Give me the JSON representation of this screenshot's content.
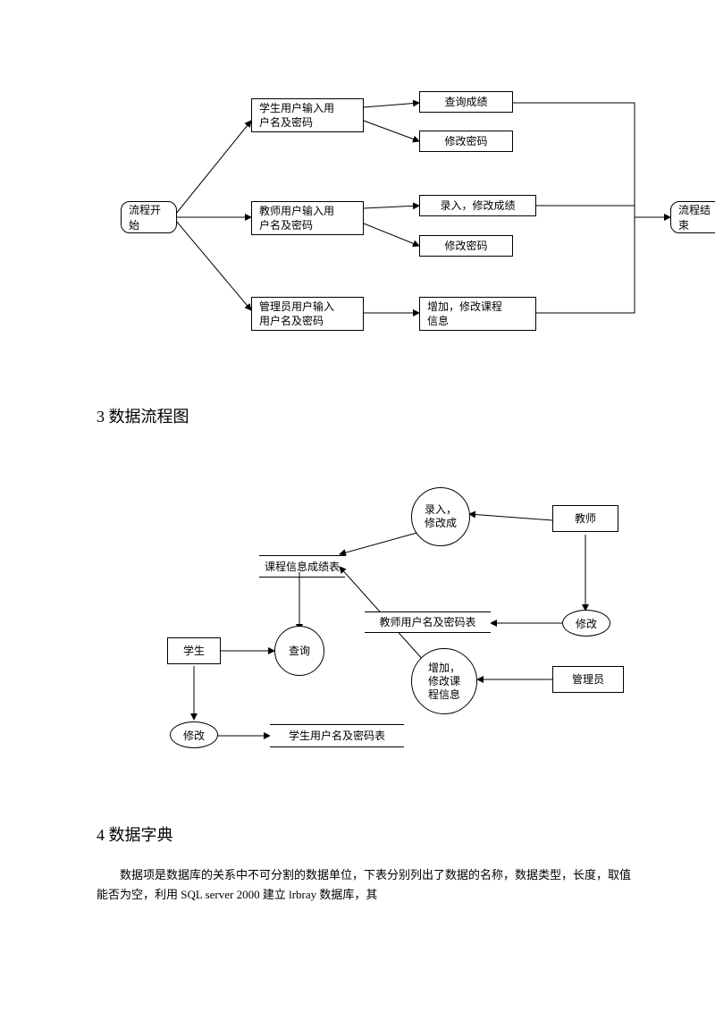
{
  "flowchart1": {
    "nodes": {
      "start": {
        "label": "流程开始"
      },
      "student": {
        "label": "学生用户输入用\n户名及密码"
      },
      "teacher": {
        "label": "教师用户输入用\n户名及密码"
      },
      "admin": {
        "label": "管理员用户输入\n用户名及密码"
      },
      "query": {
        "label": "查询成绩"
      },
      "spwd": {
        "label": "修改密码"
      },
      "enter": {
        "label": "录入，修改成绩"
      },
      "tpwd": {
        "label": "修改密码"
      },
      "course": {
        "label": "增加，修改课程\n信息"
      },
      "end": {
        "label": "流程结束"
      }
    },
    "colors": {
      "stroke": "#000000",
      "bg": "#ffffff"
    },
    "line_width": 1,
    "fontsize": 12
  },
  "heading_flow": "3 数据流程图",
  "dfd": {
    "nodes": {
      "teacher_ext": {
        "label": "教师"
      },
      "admin_ext": {
        "label": "管理员"
      },
      "student_ext": {
        "label": "学生"
      },
      "p_enter": {
        "label": "录入，\n修改成"
      },
      "p_modify_t": {
        "label": "修改"
      },
      "p_query": {
        "label": "查询"
      },
      "p_course": {
        "label": "增加，\n修改课\n程信息"
      },
      "p_modify_s": {
        "label": "修改"
      },
      "ds_course": {
        "label": "课程信息成绩表"
      },
      "ds_teacher": {
        "label": "教师用户名及密码表"
      },
      "ds_student": {
        "label": "学生用户名及密码表"
      }
    },
    "colors": {
      "stroke": "#000000",
      "bg": "#ffffff"
    },
    "line_width": 1,
    "fontsize": 12
  },
  "heading_dict": "4 数据字典",
  "dict_para": "　　数据项是数据库的关系中不可分割的数据单位，下表分别列出了数据的名称，数据类型，长度，取值能否为空，利用 SQL server 2000 建立 lrbray 数据库，其"
}
